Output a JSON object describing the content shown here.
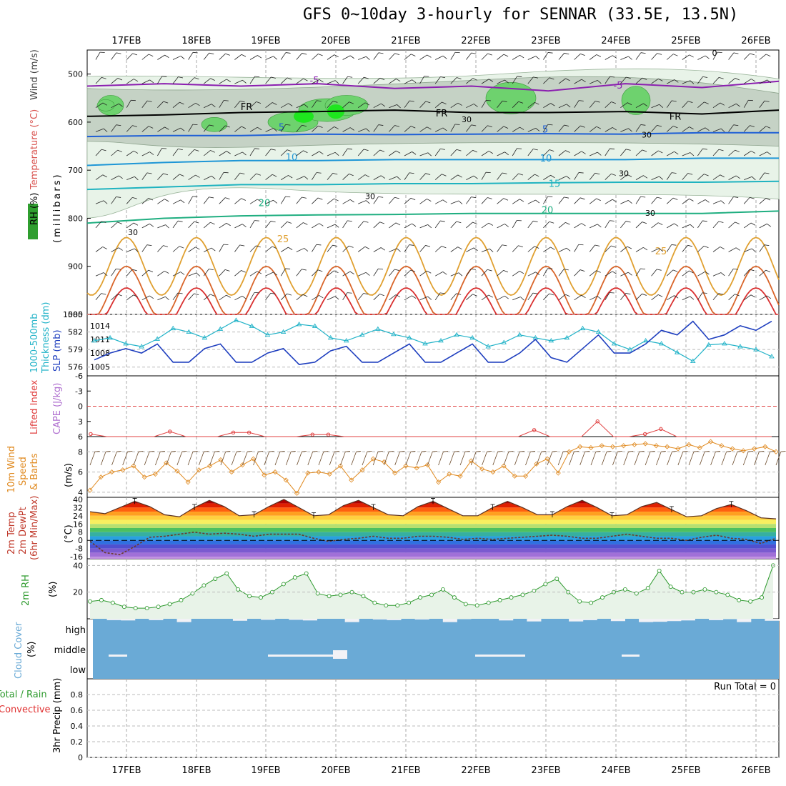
{
  "title": "GFS 0~10day 3-hourly for SENNAR (33.5E, 13.5N)",
  "dates": [
    "17FEB",
    "18FEB",
    "19FEB",
    "20FEB",
    "21FEB",
    "22FEB",
    "23FEB",
    "24FEB",
    "25FEB",
    "26FEB"
  ],
  "colors": {
    "rh_green": "#2f9e2f",
    "temp": "#d9534f",
    "wind_text": "#444444",
    "thickness": "#22b3c8",
    "slp": "#1f3fbf",
    "lifted": "#e04040",
    "cape": "#b070d0",
    "wind10": "#e08a20",
    "temp2m": "#c0392b",
    "rh2m": "#2e9a2e",
    "cloud": "#6aaad6",
    "precip_total": "#2e9a2e",
    "precip_conv": "#e03030"
  },
  "labels": {
    "upper": [
      "RH (%)",
      "Temperature (°C)",
      "Wind (m/s)",
      "(millibars)"
    ],
    "thick": [
      "1000-500mb",
      "Thickness (dm)",
      "SLP (mb)"
    ],
    "cape": [
      "Lifted Index",
      "CAPE (J/kg)"
    ],
    "wind10": [
      "10m Wind",
      "Speed",
      "& Barbs",
      "(m/s)"
    ],
    "temp2m": [
      "2m Temp",
      "2m DewPt",
      "(6hr Min/Max)",
      "(°C)"
    ],
    "rh2m": [
      "2m RH",
      "(%)"
    ],
    "cloud": [
      "Cloud Cover",
      "(%)",
      "high",
      "middle",
      "low"
    ],
    "precip": [
      "Total / Rain",
      "Convective",
      "3hr Precip (mm)"
    ],
    "run_total": "Run Total = 0"
  },
  "chart_data": [
    {
      "type": "contour",
      "panel": "upper",
      "y_ticks": [
        "500",
        "600",
        "700",
        "800",
        "900",
        "1000"
      ],
      "ylim": [
        1000,
        450
      ],
      "isotherm_labels": [
        "-5",
        "-5",
        "FR",
        "FR",
        "FR",
        "5",
        "5",
        "10",
        "10",
        "15",
        "20",
        "20",
        "25",
        "25"
      ],
      "rh_labels": [
        "30",
        "30",
        "30",
        "30",
        "30",
        "30",
        "0"
      ],
      "isotherms_mb": [
        {
          "name": "-5",
          "value": [
            525,
            520,
            525,
            520,
            530,
            525,
            535,
            520,
            528,
            515
          ]
        },
        {
          "name": "FR",
          "value": [
            588,
            585,
            580,
            578,
            575,
            580,
            580,
            578,
            583,
            575
          ]
        },
        {
          "name": "5",
          "value": [
            630,
            628,
            628,
            625,
            626,
            625,
            624,
            625,
            622,
            622
          ]
        },
        {
          "name": "10",
          "value": [
            690,
            684,
            680,
            680,
            678,
            678,
            678,
            678,
            675,
            675
          ]
        },
        {
          "name": "15",
          "value": [
            740,
            735,
            730,
            730,
            728,
            728,
            726,
            725,
            725,
            723
          ]
        },
        {
          "name": "20",
          "value": [
            810,
            800,
            795,
            793,
            792,
            790,
            790,
            790,
            790,
            785
          ]
        }
      ]
    },
    {
      "type": "line",
      "panel": "thickness_slp",
      "y_ticks_left": [
        "585",
        "582",
        "579",
        "576"
      ],
      "y_ticks_right": [
        "1014",
        "1011",
        "1008",
        "1005"
      ],
      "series": [
        {
          "name": "1000-500mb Thickness",
          "axis": "left",
          "values": [
            580.5,
            581,
            580,
            579.5,
            580.8,
            582.6,
            582,
            581,
            582.5,
            584,
            583,
            581.5,
            582,
            583.3,
            583,
            581,
            580.5,
            581.5,
            582.5,
            581.6,
            581,
            580,
            580.5,
            581.5,
            581,
            579.5,
            580.2,
            581.5,
            581,
            580.5,
            581,
            582.6,
            582,
            580,
            579,
            580.5,
            580,
            578.5,
            577,
            579.8,
            580,
            579.5,
            579,
            577.8
          ]
        },
        {
          "name": "SLP",
          "axis": "right",
          "values": [
            1006.5,
            1008,
            1009,
            1008,
            1010,
            1006,
            1006,
            1009,
            1010,
            1006,
            1006,
            1008,
            1009,
            1005.5,
            1006,
            1008.5,
            1009.5,
            1006,
            1006,
            1008,
            1010,
            1006,
            1006,
            1008,
            1010,
            1006,
            1006,
            1008,
            1011,
            1007,
            1006,
            1009,
            1012,
            1008,
            1008,
            1010,
            1013,
            1012,
            1015,
            1011,
            1012,
            1014,
            1013,
            1015
          ]
        }
      ]
    },
    {
      "type": "line",
      "panel": "cape",
      "y_ticks_left": [
        "-6",
        "-3",
        "0",
        "3",
        "6"
      ],
      "ylim": [
        -6,
        6
      ],
      "series": [
        {
          "name": "Lifted Index",
          "values": [
            5.5,
            6,
            6,
            6,
            6,
            5,
            6,
            6,
            6,
            5.2,
            5.2,
            6,
            6,
            6,
            5.6,
            5.6,
            6,
            6,
            6,
            6,
            6,
            6,
            6,
            6,
            6,
            6,
            6,
            6,
            4.7,
            6,
            6,
            6,
            3.0,
            6,
            6,
            5.5,
            4.5,
            6,
            6,
            6,
            6,
            6,
            6,
            6
          ]
        }
      ]
    },
    {
      "type": "line",
      "panel": "wind10",
      "y_ticks": [
        "4",
        "6",
        "8"
      ],
      "ylim": [
        3.5,
        9.5
      ],
      "series": [
        {
          "name": "10m Wind Speed",
          "values": [
            4.2,
            5.5,
            6.0,
            6.2,
            6.6,
            5.5,
            5.8,
            6.9,
            6.1,
            5.0,
            6.2,
            6.6,
            7.2,
            6.0,
            6.7,
            7.3,
            5.7,
            6.0,
            5.2,
            3.9,
            5.9,
            6.0,
            5.8,
            6.6,
            5.2,
            6.2,
            7.3,
            7.0,
            5.9,
            6.6,
            6.4,
            6.7,
            5.0,
            5.8,
            5.6,
            7.1,
            6.3,
            6.0,
            6.6,
            5.6,
            5.6,
            6.8,
            7.3,
            5.9,
            8.0,
            8.5,
            8.4,
            8.6,
            8.5,
            8.6,
            8.7,
            8.8,
            8.6,
            8.5,
            8.3,
            8.7,
            8.4,
            9.0,
            8.6,
            8.3,
            8.1,
            8.3,
            8.5,
            8.0
          ]
        }
      ]
    },
    {
      "type": "area",
      "panel": "temp2m",
      "y_ticks": [
        "40",
        "32",
        "24",
        "16",
        "8",
        "0",
        "-8",
        "-16"
      ],
      "ylim": [
        -18,
        42
      ],
      "series": [
        {
          "name": "2m Temp",
          "values": [
            28,
            26,
            32,
            38,
            33,
            25,
            23,
            32,
            39,
            33,
            24,
            25,
            33,
            40,
            32,
            24,
            25,
            34,
            39,
            32,
            25,
            24,
            33,
            38,
            31,
            24,
            24,
            32,
            38,
            32,
            25,
            25,
            33,
            39,
            32,
            24,
            25,
            33,
            37,
            30,
            23,
            24,
            31,
            35,
            29,
            22,
            21
          ]
        },
        {
          "name": "2m DewPt",
          "values": [
            -1,
            -12,
            -14,
            -6,
            3,
            4,
            6,
            8,
            6,
            7,
            6,
            4,
            6,
            6,
            6,
            2,
            -1,
            1,
            2,
            4,
            2,
            2,
            4,
            4,
            3,
            1,
            2,
            1,
            2,
            3,
            4,
            5,
            4,
            2,
            2,
            4,
            6,
            4,
            2,
            2,
            0,
            3,
            5,
            2,
            1,
            -3,
            2
          ]
        }
      ]
    },
    {
      "type": "area",
      "panel": "rh2m",
      "y_ticks": [
        "40",
        "20"
      ],
      "ylim": [
        0,
        45
      ],
      "series": [
        {
          "name": "2m RH",
          "values": [
            13,
            14,
            12,
            9,
            8,
            8,
            9,
            11,
            14,
            19,
            25,
            30,
            34,
            22,
            17,
            16,
            20,
            26,
            31,
            34,
            19,
            17,
            18,
            20,
            17,
            12,
            10,
            10,
            12,
            16,
            18,
            22,
            16,
            11,
            10,
            12,
            14,
            16,
            18,
            21,
            26,
            30,
            20,
            13,
            12,
            16,
            20,
            22,
            19,
            23,
            36,
            24,
            20,
            20,
            22,
            20,
            18,
            14,
            13,
            16,
            40
          ]
        }
      ]
    },
    {
      "type": "bar",
      "panel": "cloud",
      "y_ticks": [
        "high",
        "middle",
        "low"
      ],
      "series": [
        {
          "name": "Cloud Cover",
          "values": [
            100,
            96,
            95,
            100,
            96,
            100,
            90,
            100,
            100,
            100,
            94,
            100,
            97,
            100,
            97,
            95,
            100,
            100,
            90,
            100,
            98,
            96,
            100,
            98,
            100,
            90,
            99,
            100,
            100,
            95,
            100,
            92,
            100,
            100,
            92,
            96,
            100,
            93,
            100,
            90,
            91,
            93,
            95,
            100,
            96,
            99,
            90,
            100,
            94
          ]
        }
      ]
    },
    {
      "type": "bar",
      "panel": "precip",
      "y_ticks": [
        "0.8",
        "0.6",
        "0.4",
        "0.2",
        "0"
      ],
      "ylim": [
        0,
        1
      ],
      "series": [
        {
          "name": "Total / Rain",
          "values": []
        }
      ]
    }
  ]
}
